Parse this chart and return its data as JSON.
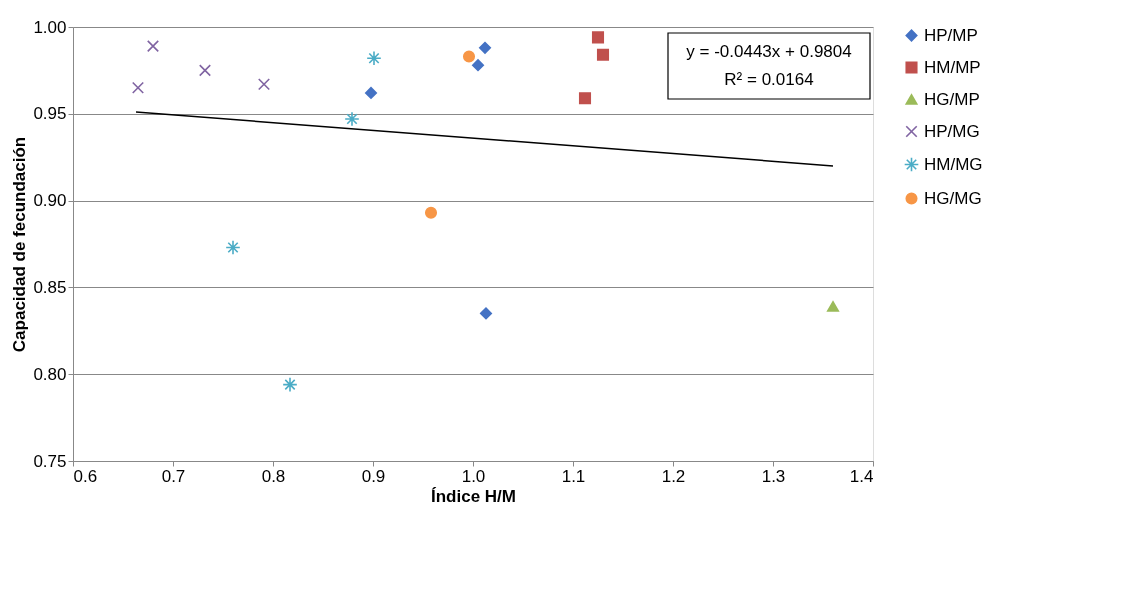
{
  "chart_data": {
    "type": "scatter",
    "xlabel": "Índice H/M",
    "ylabel": "Capacidad de fecundación",
    "xlim": [
      0.6,
      1.4
    ],
    "xticks": [
      0.6,
      0.7,
      0.8,
      0.9,
      {
        "value": 1.0,
        "label": "1.0"
      },
      1.1,
      1.2,
      1.3,
      1.4
    ],
    "ylim": [
      0.75,
      1.0
    ],
    "yticks": [
      {
        "value": 0.75,
        "label": "0.75"
      },
      {
        "value": 0.8,
        "label": "0.80"
      },
      {
        "value": 0.85,
        "label": "0.85"
      },
      {
        "value": 0.9,
        "label": "0.90"
      },
      {
        "value": 0.95,
        "label": "0.95"
      },
      {
        "value": 1.0,
        "label": "1.00"
      }
    ],
    "grid": "y",
    "legend": "right",
    "series": [
      {
        "name": "HP/MP",
        "color": "#4472c4",
        "x": [
          0.898,
          1.005,
          1.012,
          1.013
        ],
        "values": [
          0.962,
          0.978,
          0.988,
          0.835
        ]
      },
      {
        "name": "HM/MP",
        "color": "#c0504d",
        "x": [
          1.125,
          1.13,
          1.112
        ],
        "values": [
          0.994,
          0.984,
          0.959
        ]
      },
      {
        "name": "HG/MP",
        "color": "#9bbb59",
        "x": [
          1.36
        ],
        "values": [
          0.839
        ]
      },
      {
        "name": "HP/MG",
        "color": "#8064a2",
        "x": [
          0.665,
          0.68,
          0.732,
          0.791
        ],
        "values": [
          0.965,
          0.989,
          0.975,
          0.967
        ]
      },
      {
        "name": "HM/MG",
        "color": "#4bacc6",
        "x": [
          0.901,
          0.879,
          0.76,
          0.817
        ],
        "values": [
          0.982,
          0.947,
          0.873,
          0.794
        ]
      },
      {
        "name": "HG/MG",
        "color": "#f79646",
        "x": [
          0.996,
          0.958
        ],
        "values": [
          0.983,
          0.893
        ]
      },
      {
        "type": "line",
        "color": "#000000",
        "x": [
          0.663,
          1.36
        ],
        "values": [
          0.951,
          0.92
        ]
      }
    ],
    "annotations": [
      "y = -0.0443x + 0.9804",
      "R² = 0.0164"
    ]
  }
}
